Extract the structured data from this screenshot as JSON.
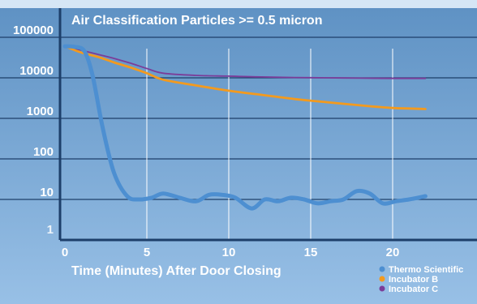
{
  "chart_data": {
    "type": "line",
    "title": "Air Classification   Particles >= 0.5 micron",
    "xlabel": "Time (Minutes) After Door Closing",
    "ylabel": "",
    "y_scale": "log",
    "xlim": [
      0,
      23
    ],
    "ylim": [
      1,
      100000
    ],
    "x_ticks": [
      {
        "value": 0,
        "label": "0"
      },
      {
        "value": 5,
        "label": "5"
      },
      {
        "value": 10,
        "label": "10"
      },
      {
        "value": 15,
        "label": "15"
      },
      {
        "value": 20,
        "label": "20"
      }
    ],
    "y_ticks": [
      {
        "value": 1,
        "label": "1"
      },
      {
        "value": 10,
        "label": "10"
      },
      {
        "value": 100,
        "label": "100"
      },
      {
        "value": 1000,
        "label": "1000"
      },
      {
        "value": 10000,
        "label": "10000"
      },
      {
        "value": 100000,
        "label": "100000"
      }
    ],
    "grid": true,
    "legend_position": "bottom-right",
    "series": [
      {
        "name": "Thermo Scientific",
        "color": "#4d8fd1",
        "x": [
          0,
          0.6,
          1.2,
          1.7,
          2.3,
          3.0,
          3.8,
          4.5,
          5.3,
          6.0,
          7.0,
          8.0,
          8.8,
          9.6,
          10.4,
          11.4,
          12.2,
          13.0,
          13.8,
          14.6,
          15.4,
          16.2,
          17.0,
          17.8,
          18.6,
          19.4,
          20.2,
          21.0,
          22.0
        ],
        "y": [
          60000,
          58000,
          45000,
          11000,
          600,
          45,
          12,
          10,
          11,
          14,
          11,
          9,
          13,
          13,
          11,
          6,
          10,
          9,
          11,
          10,
          8,
          9,
          10,
          16,
          14,
          8,
          9,
          10,
          12
        ]
      },
      {
        "name": "Incubator B",
        "color": "#f39a1e",
        "x": [
          0,
          1,
          2,
          3,
          4,
          5,
          6,
          8,
          10,
          12,
          14,
          16,
          18,
          20,
          21,
          22
        ],
        "y": [
          60000,
          42000,
          33000,
          24000,
          18000,
          13000,
          9000,
          6500,
          4800,
          3800,
          3000,
          2500,
          2100,
          1800,
          1750,
          1700
        ]
      },
      {
        "name": "Incubator C",
        "color": "#7b3d99",
        "x": [
          0,
          1,
          2,
          3,
          4,
          5,
          6,
          8,
          10,
          12,
          14,
          16,
          18,
          20,
          22
        ],
        "y": [
          60000,
          48000,
          38000,
          30000,
          23000,
          17000,
          13000,
          11500,
          11000,
          10500,
          10200,
          10000,
          9800,
          9700,
          9700
        ]
      }
    ]
  }
}
